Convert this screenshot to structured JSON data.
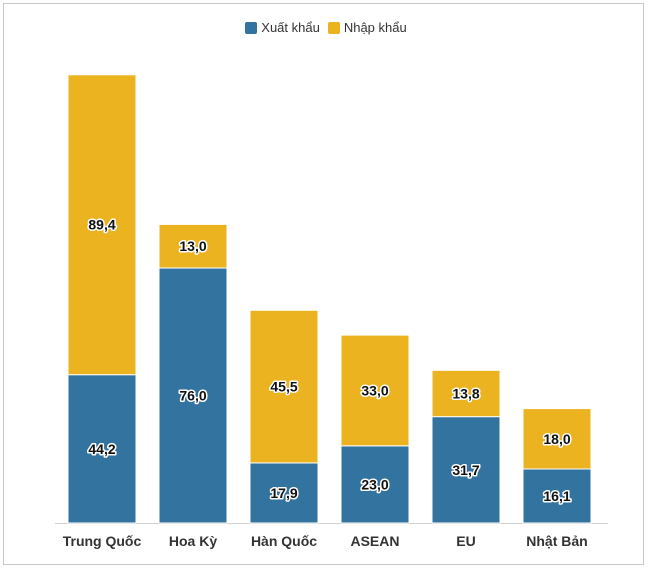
{
  "chart_data": {
    "type": "bar",
    "stacked": true,
    "categories": [
      "Trung Quốc",
      "Hoa Kỳ",
      "Hàn Quốc",
      "ASEAN",
      "EU",
      "Nhật Bản"
    ],
    "series": [
      {
        "name": "Xuất khẩu",
        "color": "#33739f",
        "values": [
          44.2,
          76.0,
          17.9,
          23.0,
          31.7,
          16.1
        ],
        "labels": [
          "44,2",
          "76,0",
          "17,9",
          "23,0",
          "31,7",
          "16,1"
        ]
      },
      {
        "name": "Nhập khẩu",
        "color": "#ecb321",
        "values": [
          89.4,
          13.0,
          45.5,
          33.0,
          13.8,
          18.0
        ],
        "labels": [
          "89,4",
          "13,0",
          "45,5",
          "33,0",
          "13,8",
          "18,0"
        ]
      }
    ],
    "legend_position": "top-center",
    "grid": false
  }
}
